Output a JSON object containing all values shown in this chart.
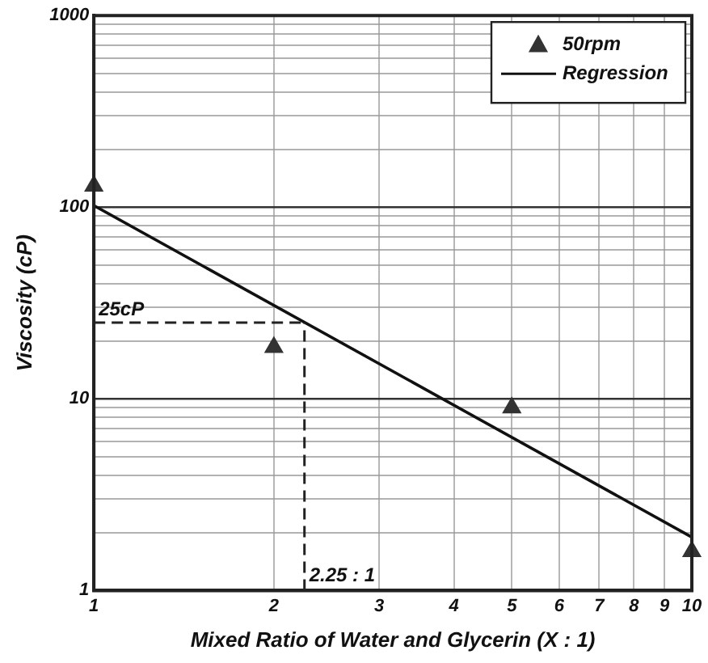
{
  "chart_data": {
    "type": "scatter",
    "xlabel": "Mixed Ratio of Water and Glycerin (X : 1)",
    "ylabel": "Viscosity (cP)",
    "log": "xy",
    "grid": true,
    "legend": "top right",
    "xlim": [
      1,
      10
    ],
    "xticks": [
      1,
      2,
      3,
      4,
      5,
      6,
      7,
      8,
      9,
      10
    ],
    "ylim": [
      1,
      1000
    ],
    "yticks": [
      1,
      {
        "value": 2,
        "label": null
      },
      {
        "value": 3,
        "label": null
      },
      {
        "value": 4,
        "label": null
      },
      {
        "value": 5,
        "label": null
      },
      {
        "value": 6,
        "label": null
      },
      {
        "value": 7,
        "label": null
      },
      {
        "value": 8,
        "label": null
      },
      {
        "value": 9,
        "label": null
      },
      10,
      {
        "value": 20,
        "label": null
      },
      {
        "value": 30,
        "label": null
      },
      {
        "value": 40,
        "label": null
      },
      {
        "value": 50,
        "label": null
      },
      {
        "value": 60,
        "label": null
      },
      {
        "value": 70,
        "label": null
      },
      {
        "value": 80,
        "label": null
      },
      {
        "value": 90,
        "label": null
      },
      100,
      {
        "value": 200,
        "label": null
      },
      {
        "value": 300,
        "label": null
      },
      {
        "value": 400,
        "label": null
      },
      {
        "value": 500,
        "label": null
      },
      {
        "value": 600,
        "label": null
      },
      {
        "value": 700,
        "label": null
      },
      {
        "value": 800,
        "label": null
      },
      {
        "value": 900,
        "label": null
      },
      1000
    ],
    "series": [
      {
        "name": "50rpm",
        "marker": "triangle",
        "color": "#333333",
        "x": [
          1,
          2,
          5,
          10
        ],
        "values": [
          129,
          18.6,
          9,
          1.6
        ]
      },
      {
        "name": "Regression",
        "type": "line",
        "marker": "none",
        "line_style": "solid",
        "color": "#111111",
        "x": [
          1,
          10
        ],
        "values": [
          102,
          1.9
        ]
      }
    ],
    "ref_lines": [
      {
        "axis": "y",
        "value": 25,
        "label": "25cP",
        "line_style": "dashed",
        "color": "#222222"
      },
      {
        "axis": "x",
        "value": 2.25,
        "label": "2.25 : 1",
        "line_style": "dashed",
        "color": "#222222"
      }
    ]
  }
}
